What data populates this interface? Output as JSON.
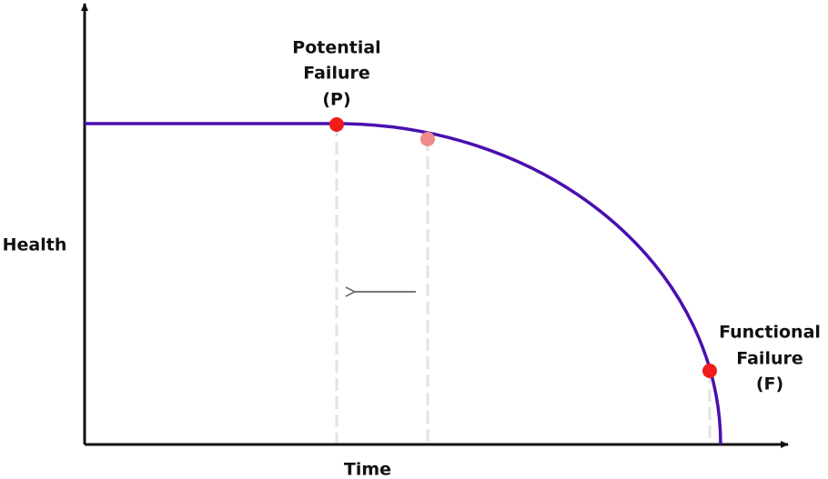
{
  "axes": {
    "x_label": "Time",
    "y_label": "Health"
  },
  "points": [
    {
      "label_lines": [
        "Potential",
        "Failure",
        "(P)"
      ]
    },
    {
      "label_lines": [
        "Functional",
        "Failure",
        "(F)"
      ]
    }
  ]
}
